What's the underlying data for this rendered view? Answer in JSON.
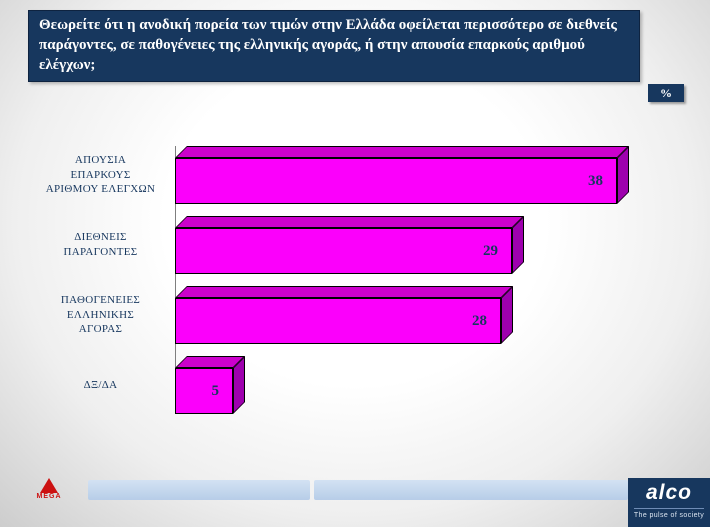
{
  "header": {
    "question": "Θεωρείτε ότι η ανοδική πορεία των τιμών στην Ελλάδα οφείλεται περισσότερο σε διεθνείς παράγοντες, σε παθογένειες της ελληνικής αγοράς, ή στην απουσία επαρκούς αριθμού ελέγχων;",
    "unit_badge": "%"
  },
  "chart_data": {
    "type": "bar",
    "orientation": "horizontal",
    "title": "",
    "categories": [
      "ΑΠΟΥΣΙΑ ΕΠΑΡΚΟΥΣ ΑΡΙΘΜΟΥ ΕΛΕΓΧΩΝ",
      "ΔΙΕΘΝΕΙΣ ΠΑΡΑΓΟΝΤΕΣ",
      "ΠΑΘΟΓΕΝΕΙΕΣ ΕΛΛΗΝΙΚΗΣ ΑΓΟΡΑΣ",
      "ΔΞ/ΔΑ"
    ],
    "label_lines": [
      [
        "ΑΠΟΥΣΙΑ",
        "ΕΠΑΡΚΟΥΣ",
        "ΑΡΙΘΜΟΥ ΕΛΕΓΧΩΝ"
      ],
      [
        "ΔΙΕΘΝΕΙΣ",
        "ΠΑΡΑΓΟΝΤΕΣ"
      ],
      [
        "ΠΑΘΟΓΕΝΕΙΕΣ",
        "ΕΛΛΗΝΙΚΗΣ",
        "ΑΓΟΡΑΣ"
      ],
      [
        "ΔΞ/ΔΑ"
      ]
    ],
    "values": [
      38,
      29,
      28,
      5
    ],
    "unit": "%",
    "xlim": [
      0,
      40
    ],
    "grid": false,
    "legend": "none",
    "bar_color": "#FB00FB",
    "bar_top_color": "#CC00CC",
    "bar_side_color": "#9E00AE",
    "value_label_color": "#17375E"
  },
  "footer": {
    "mega_logo_text": "MEGA",
    "alco_logo_text": "alco",
    "alco_tagline": "The pulse of society"
  }
}
